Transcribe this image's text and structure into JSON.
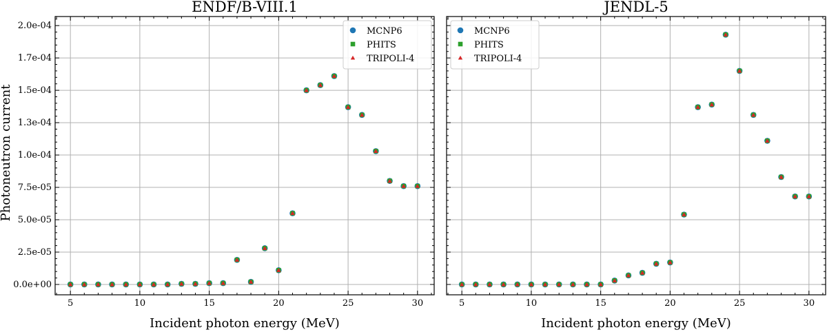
{
  "chart_data": [
    {
      "type": "scatter",
      "title": "ENDF/B-VIII.1",
      "xlabel": "Incident photon energy (MeV)",
      "ylabel": "Photoneutron current",
      "xlim": [
        3.9,
        31.2
      ],
      "ylim": [
        -8e-06,
        0.000207
      ],
      "xticks": [
        5,
        10,
        15,
        20,
        25,
        30
      ],
      "xtick_labels": [
        "5",
        "10",
        "15",
        "20",
        "25",
        "30"
      ],
      "yticks": [
        0,
        2.5e-05,
        5e-05,
        7.5e-05,
        0.0001,
        0.000125,
        0.00015,
        0.000175,
        0.0002
      ],
      "ytick_labels": [
        "0.0e+00",
        "2.5e-05",
        "5.0e-05",
        "7.5e-05",
        "1.0e-04",
        "1.3e-04",
        "1.5e-04",
        "1.7e-04",
        "2.0e-04"
      ],
      "grid": true,
      "legend_position": "top-right",
      "x": [
        5,
        6,
        7,
        8,
        9,
        10,
        11,
        12,
        13,
        14,
        15,
        16,
        17,
        18,
        19,
        20,
        21,
        22,
        23,
        24,
        25,
        26,
        27,
        28,
        29,
        30
      ],
      "series": [
        {
          "name": "MCNP6",
          "marker": "circle",
          "color": "#1f77b4",
          "values": [
            0,
            0,
            0,
            0,
            0,
            0,
            0,
            0,
            5e-07,
            5e-07,
            1e-06,
            1e-06,
            1.9e-05,
            2e-06,
            2.8e-05,
            1.1e-05,
            5.5e-05,
            0.00015,
            0.000154,
            0.000161,
            0.000137,
            0.000131,
            0.000103,
            8e-05,
            7.6e-05,
            7.6e-05
          ]
        },
        {
          "name": "PHITS",
          "marker": "square",
          "color": "#2ca02c",
          "values": [
            0,
            0,
            0,
            0,
            0,
            0,
            0,
            0,
            5e-07,
            5e-07,
            1e-06,
            1e-06,
            1.9e-05,
            2e-06,
            2.8e-05,
            1.1e-05,
            5.5e-05,
            0.00015,
            0.000154,
            0.000161,
            0.000137,
            0.000131,
            0.000103,
            8e-05,
            7.6e-05,
            7.6e-05
          ]
        },
        {
          "name": "TRIPOLI-4",
          "marker": "triangle",
          "color": "#d62728",
          "values": [
            0,
            0,
            0,
            0,
            0,
            0,
            0,
            0,
            5e-07,
            5e-07,
            1e-06,
            1e-06,
            1.9e-05,
            2e-06,
            2.8e-05,
            1.1e-05,
            5.5e-05,
            0.00015,
            0.000154,
            0.000161,
            0.000137,
            0.000131,
            0.000103,
            8e-05,
            7.6e-05,
            7.6e-05
          ]
        }
      ]
    },
    {
      "type": "scatter",
      "title": "JENDL-5",
      "xlabel": "Incident photon energy (MeV)",
      "ylabel": "",
      "xlim": [
        3.9,
        31.2
      ],
      "ylim": [
        -8e-06,
        0.000207
      ],
      "xticks": [
        5,
        10,
        15,
        20,
        25,
        30
      ],
      "xtick_labels": [
        "5",
        "10",
        "15",
        "20",
        "25",
        "30"
      ],
      "yticks": [
        0,
        2.5e-05,
        5e-05,
        7.5e-05,
        0.0001,
        0.000125,
        0.00015,
        0.000175,
        0.0002
      ],
      "ytick_labels": [],
      "grid": true,
      "legend_position": "top-left",
      "x": [
        5,
        6,
        7,
        8,
        9,
        10,
        11,
        12,
        13,
        14,
        15,
        16,
        17,
        18,
        19,
        20,
        21,
        22,
        23,
        24,
        25,
        26,
        27,
        28,
        29,
        30
      ],
      "series": [
        {
          "name": "MCNP6",
          "marker": "circle",
          "color": "#1f77b4",
          "values": [
            0,
            0,
            0,
            0,
            0,
            0,
            0,
            0,
            0,
            0,
            0,
            3e-06,
            7e-06,
            9e-06,
            1.6e-05,
            1.7e-05,
            5.4e-05,
            0.000137,
            0.000139,
            0.000193,
            0.000165,
            0.000131,
            0.000111,
            8.3e-05,
            6.8e-05,
            6.8e-05
          ]
        },
        {
          "name": "PHITS",
          "marker": "square",
          "color": "#2ca02c",
          "values": [
            0,
            0,
            0,
            0,
            0,
            0,
            0,
            0,
            0,
            0,
            0,
            3e-06,
            7e-06,
            9e-06,
            1.6e-05,
            1.7e-05,
            5.4e-05,
            0.000137,
            0.000139,
            0.000193,
            0.000165,
            0.000131,
            0.000111,
            8.3e-05,
            6.8e-05,
            6.8e-05
          ]
        },
        {
          "name": "TRIPOLI-4",
          "marker": "triangle",
          "color": "#d62728",
          "values": [
            0,
            0,
            0,
            0,
            0,
            0,
            0,
            0,
            0,
            0,
            0,
            3e-06,
            7e-06,
            9e-06,
            1.6e-05,
            1.7e-05,
            5.4e-05,
            0.000137,
            0.000139,
            0.000193,
            0.000165,
            0.000131,
            0.000111,
            8.3e-05,
            6.8e-05,
            6.8e-05
          ]
        }
      ]
    }
  ]
}
